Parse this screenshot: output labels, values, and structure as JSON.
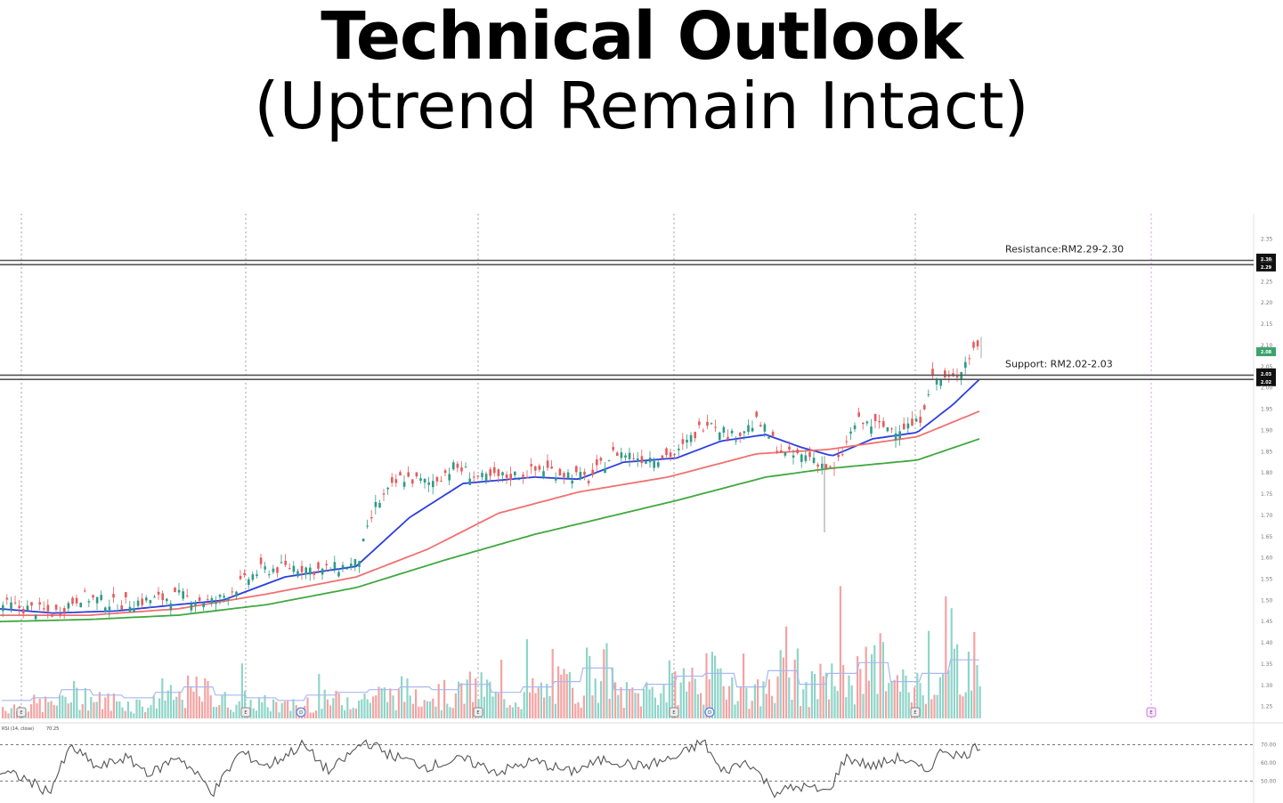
{
  "title": "Technical Outlook",
  "subtitle": "(Uptrend Remain Intact)",
  "chart_data": {
    "type": "candlestick",
    "price_axis": {
      "ylim": [
        1.22,
        2.41
      ],
      "ticks": [
        "2.35",
        "2.30",
        "2.25",
        "2.20",
        "2.15",
        "2.10",
        "2.05",
        "2.00",
        "1.95",
        "1.90",
        "1.85",
        "1.80",
        "1.75",
        "1.70",
        "1.65",
        "1.60",
        "1.55",
        "1.50",
        "1.45",
        "1.40",
        "1.35",
        "1.30",
        "1.25"
      ]
    },
    "levels": [
      {
        "name": "resistance",
        "label": "Resistance:RM2.29-2.30",
        "values": [
          2.29,
          2.3
        ],
        "badge_top": "2.30",
        "badge_bottom": "2.29",
        "color": "#555555"
      },
      {
        "name": "support",
        "label": "Support: RM2.02-2.03",
        "values": [
          2.02,
          2.03
        ],
        "badge_top": "2.03",
        "badge_bottom": "2.02",
        "color": "#555555"
      }
    ],
    "last_price_badge": "2.08",
    "moving_averages": [
      {
        "color": "#2b3ee0",
        "anchors": [
          [
            0,
            1.48
          ],
          [
            60,
            1.47
          ],
          [
            130,
            1.475
          ],
          [
            200,
            1.49
          ],
          [
            250,
            1.5
          ],
          [
            320,
            1.555
          ],
          [
            400,
            1.58
          ],
          [
            460,
            1.695
          ],
          [
            520,
            1.775
          ],
          [
            600,
            1.79
          ],
          [
            650,
            1.785
          ],
          [
            700,
            1.825
          ],
          [
            760,
            1.835
          ],
          [
            810,
            1.875
          ],
          [
            860,
            1.89
          ],
          [
            900,
            1.86
          ],
          [
            935,
            1.84
          ],
          [
            980,
            1.88
          ],
          [
            1030,
            1.895
          ],
          [
            1070,
            1.96
          ],
          [
            1100,
            2.02
          ]
        ]
      },
      {
        "color": "#f07070",
        "anchors": [
          [
            0,
            1.465
          ],
          [
            100,
            1.465
          ],
          [
            200,
            1.48
          ],
          [
            300,
            1.515
          ],
          [
            400,
            1.555
          ],
          [
            480,
            1.62
          ],
          [
            560,
            1.705
          ],
          [
            650,
            1.755
          ],
          [
            750,
            1.79
          ],
          [
            850,
            1.845
          ],
          [
            930,
            1.855
          ],
          [
            1030,
            1.885
          ],
          [
            1100,
            1.945
          ]
        ]
      },
      {
        "color": "#3fa83f",
        "anchors": [
          [
            0,
            1.45
          ],
          [
            100,
            1.455
          ],
          [
            200,
            1.465
          ],
          [
            300,
            1.49
          ],
          [
            400,
            1.53
          ],
          [
            500,
            1.595
          ],
          [
            600,
            1.655
          ],
          [
            700,
            1.705
          ],
          [
            760,
            1.735
          ],
          [
            860,
            1.79
          ],
          [
            930,
            1.81
          ],
          [
            1030,
            1.83
          ],
          [
            1100,
            1.88
          ]
        ]
      }
    ],
    "price_path": [
      [
        0,
        1.49
      ],
      [
        60,
        1.47
      ],
      [
        90,
        1.51
      ],
      [
        130,
        1.49
      ],
      [
        200,
        1.51
      ],
      [
        240,
        1.495
      ],
      [
        290,
        1.57
      ],
      [
        330,
        1.58
      ],
      [
        360,
        1.57
      ],
      [
        400,
        1.585
      ],
      [
        420,
        1.72
      ],
      [
        450,
        1.79
      ],
      [
        480,
        1.775
      ],
      [
        510,
        1.815
      ],
      [
        540,
        1.785
      ],
      [
        580,
        1.795
      ],
      [
        610,
        1.81
      ],
      [
        660,
        1.785
      ],
      [
        690,
        1.85
      ],
      [
        720,
        1.835
      ],
      [
        760,
        1.845
      ],
      [
        795,
        1.93
      ],
      [
        820,
        1.885
      ],
      [
        850,
        1.92
      ],
      [
        880,
        1.84
      ],
      [
        910,
        1.84
      ],
      [
        935,
        1.8
      ],
      [
        960,
        1.92
      ],
      [
        1000,
        1.905
      ],
      [
        1030,
        1.915
      ],
      [
        1045,
        2.02
      ],
      [
        1070,
        2.02
      ],
      [
        1095,
        2.1
      ]
    ],
    "volume_profile": [
      0.2,
      0.25,
      0.4,
      0.3,
      0.25,
      0.35,
      0.45,
      0.3,
      0.25,
      0.2,
      0.3,
      0.35,
      0.4,
      0.45,
      0.4,
      0.5,
      0.35,
      0.45,
      0.55,
      0.8,
      0.4,
      0.5,
      0.65,
      0.7,
      0.45,
      0.75,
      0.5,
      0.7,
      0.9,
      0.55,
      0.7,
      0.95
    ],
    "vertical_markers_x": [
      24,
      276,
      537,
      757,
      1028,
      1293
    ],
    "event_markers": [
      {
        "x": 24,
        "kind": "E"
      },
      {
        "x": 276,
        "kind": "E"
      },
      {
        "x": 338,
        "kind": "D"
      },
      {
        "x": 537,
        "kind": "E"
      },
      {
        "x": 757,
        "kind": "E"
      },
      {
        "x": 797,
        "kind": "D"
      },
      {
        "x": 1028,
        "kind": "E"
      },
      {
        "x": 1293,
        "kind": "E"
      }
    ],
    "rsi": {
      "label": "RSI (14, close)",
      "value": "70.25",
      "ticks": [
        "70.00",
        "60.00",
        "50.00"
      ],
      "bands": [
        70,
        50
      ],
      "ylim": [
        38,
        80
      ],
      "path": [
        [
          0,
          55
        ],
        [
          25,
          52
        ],
        [
          55,
          44
        ],
        [
          80,
          69
        ],
        [
          110,
          57
        ],
        [
          140,
          63
        ],
        [
          170,
          54
        ],
        [
          200,
          64
        ],
        [
          240,
          44
        ],
        [
          270,
          66
        ],
        [
          300,
          58
        ],
        [
          340,
          70
        ],
        [
          370,
          55
        ],
        [
          410,
          72
        ],
        [
          440,
          64
        ],
        [
          480,
          58
        ],
        [
          520,
          62
        ],
        [
          560,
          55
        ],
        [
          600,
          61
        ],
        [
          640,
          55
        ],
        [
          680,
          62
        ],
        [
          720,
          58
        ],
        [
          760,
          63
        ],
        [
          790,
          72
        ],
        [
          810,
          55
        ],
        [
          840,
          61
        ],
        [
          870,
          44
        ],
        [
          900,
          47
        ],
        [
          930,
          44
        ],
        [
          950,
          63
        ],
        [
          980,
          58
        ],
        [
          1010,
          63
        ],
        [
          1040,
          55
        ],
        [
          1060,
          68
        ],
        [
          1080,
          63
        ],
        [
          1100,
          70
        ]
      ]
    }
  }
}
